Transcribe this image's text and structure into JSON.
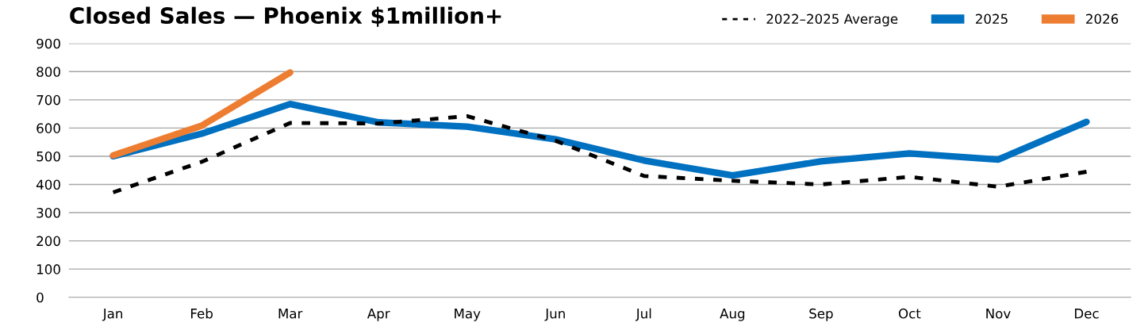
{
  "chart_data": {
    "type": "line",
    "title": "Closed Sales — Phoenix $1million+",
    "categories": [
      "Jan",
      "Feb",
      "Mar",
      "Apr",
      "May",
      "Jun",
      "Jul",
      "Aug",
      "Sep",
      "Oct",
      "Nov",
      "Dec"
    ],
    "series": [
      {
        "name": "2022–2025 Average",
        "color": "#000000",
        "line_style": "dashed",
        "values": [
          372,
          480,
          618,
          616,
          642,
          555,
          430,
          413,
          400,
          427,
          392,
          445
        ]
      },
      {
        "name": "2025",
        "color": "#0070c0",
        "values": [
          500,
          580,
          685,
          620,
          605,
          560,
          485,
          432,
          482,
          510,
          488,
          622
        ]
      },
      {
        "name": "2026",
        "color": "#ed7d31",
        "values": [
          503,
          608,
          797,
          null,
          null,
          null,
          null,
          null,
          null,
          null,
          null,
          null
        ]
      }
    ],
    "ylim": [
      0,
      900
    ],
    "yticks": [
      0,
      100,
      200,
      300,
      400,
      500,
      600,
      700,
      800,
      900
    ],
    "grid": "y",
    "legend": "top right",
    "line_style": "solid"
  }
}
